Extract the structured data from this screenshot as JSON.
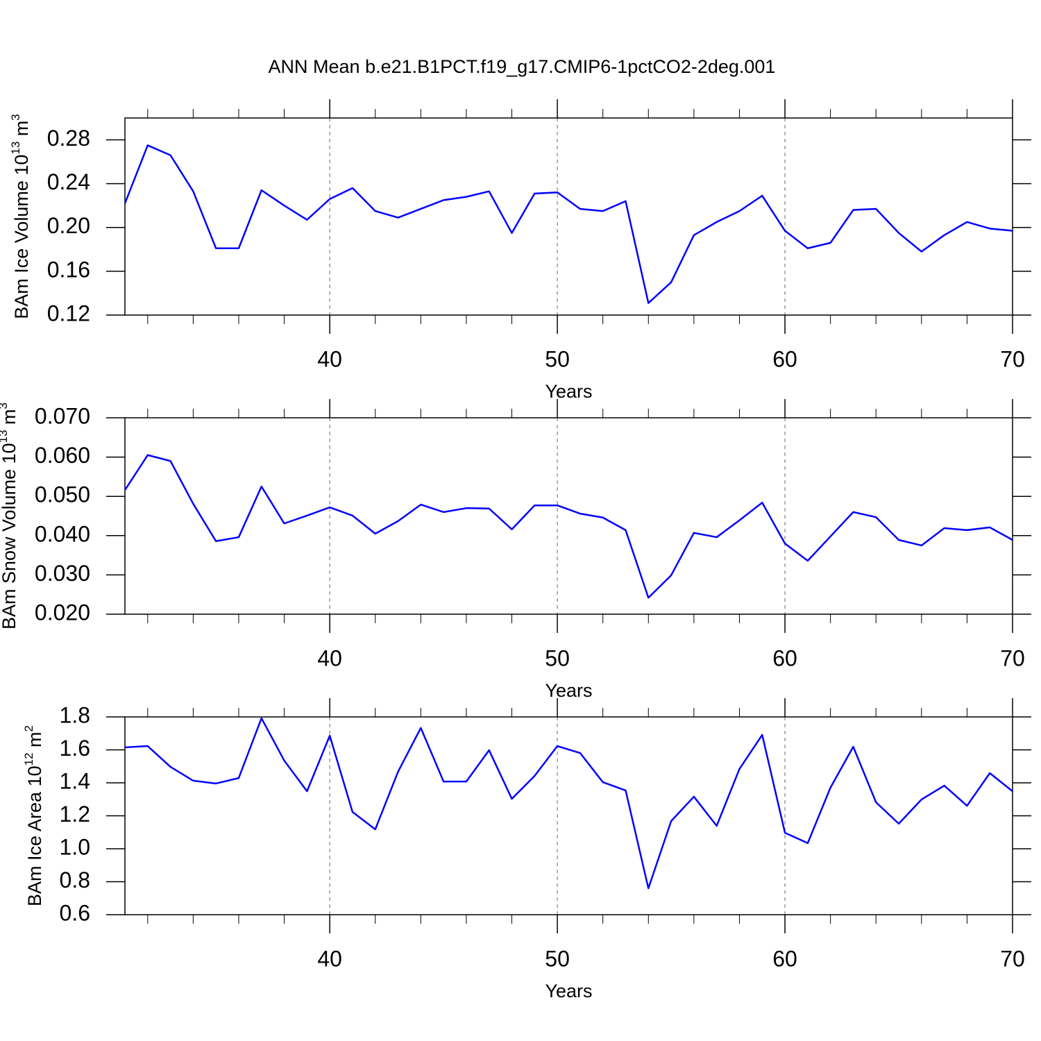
{
  "title": "ANN Mean b.e21.B1PCT.f19_g17.CMIP6-1pctCO2-2deg.001",
  "chart_data": [
    {
      "type": "line",
      "xlabel": "Years",
      "ylabel": [
        "BAm Ice Volume 10",
        "13",
        " m",
        "3"
      ],
      "color": "#0000ff",
      "x": [
        31,
        32,
        33,
        34,
        35,
        36,
        37,
        38,
        39,
        40,
        41,
        42,
        43,
        44,
        45,
        46,
        47,
        48,
        49,
        50,
        51,
        52,
        53,
        54,
        55,
        56,
        57,
        58,
        59,
        60,
        61,
        62,
        63,
        64,
        65,
        66,
        67,
        68,
        69,
        70
      ],
      "values": [
        0.222,
        0.275,
        0.266,
        0.233,
        0.181,
        0.181,
        0.234,
        0.22,
        0.207,
        0.226,
        0.236,
        0.215,
        0.209,
        0.217,
        0.225,
        0.228,
        0.233,
        0.195,
        0.231,
        0.232,
        0.217,
        0.215,
        0.224,
        0.131,
        0.15,
        0.193,
        0.205,
        0.215,
        0.229,
        0.197,
        0.181,
        0.186,
        0.216,
        0.217,
        0.195,
        0.178,
        0.193,
        0.205,
        0.199,
        0.197
      ],
      "xlim": [
        31,
        70
      ],
      "xticks": [
        40,
        50,
        60,
        70
      ],
      "xminorticks": [
        32,
        34,
        36,
        38,
        42,
        44,
        46,
        48,
        52,
        54,
        56,
        58,
        62,
        64,
        66,
        68
      ],
      "grid": true,
      "ylim": [
        0.12,
        0.3
      ],
      "yticks": [
        0.12,
        0.16,
        {
          "value": 0.2,
          "label": "0.20"
        },
        0.24,
        0.28
      ]
    },
    {
      "type": "line",
      "xlabel": "Years",
      "ylabel": [
        "BAm Snow Volume 10",
        "13",
        " m",
        "3"
      ],
      "color": "#0000ff",
      "x": [
        31,
        32,
        33,
        34,
        35,
        36,
        37,
        38,
        39,
        40,
        41,
        42,
        43,
        44,
        45,
        46,
        47,
        48,
        49,
        50,
        51,
        52,
        53,
        54,
        55,
        56,
        57,
        58,
        59,
        60,
        61,
        62,
        63,
        64,
        65,
        66,
        67,
        68,
        69,
        70
      ],
      "values": [
        0.0516,
        0.0605,
        0.059,
        0.0481,
        0.0386,
        0.0396,
        0.0525,
        0.0431,
        0.0451,
        0.0472,
        0.0451,
        0.0405,
        0.0437,
        0.0479,
        0.046,
        0.047,
        0.0469,
        0.0416,
        0.0477,
        0.0477,
        0.0456,
        0.0446,
        0.0414,
        0.0242,
        0.0299,
        0.0407,
        0.0396,
        0.0439,
        0.0484,
        0.038,
        0.0336,
        0.0398,
        0.046,
        0.0447,
        0.0389,
        0.0375,
        0.0419,
        0.0414,
        0.0421,
        0.0389
      ],
      "xlim": [
        31,
        70
      ],
      "xticks": [
        40,
        50,
        60,
        70
      ],
      "xminorticks": [
        32,
        34,
        36,
        38,
        42,
        44,
        46,
        48,
        52,
        54,
        56,
        58,
        62,
        64,
        66,
        68
      ],
      "grid": true,
      "ylim": [
        0.02,
        0.07
      ],
      "yticks": [
        {
          "value": 0.02,
          "label": "0.020"
        },
        {
          "value": 0.03,
          "label": "0.030"
        },
        {
          "value": 0.04,
          "label": "0.040"
        },
        {
          "value": 0.05,
          "label": "0.050"
        },
        {
          "value": 0.06,
          "label": "0.060"
        },
        {
          "value": 0.07,
          "label": "0.070"
        }
      ]
    },
    {
      "type": "line",
      "xlabel": "Years",
      "ylabel": [
        "BAm Ice Area 10",
        "12",
        " m",
        "2"
      ],
      "color": "#0000ff",
      "x": [
        31,
        32,
        33,
        34,
        35,
        36,
        37,
        38,
        39,
        40,
        41,
        42,
        43,
        44,
        45,
        46,
        47,
        48,
        49,
        50,
        51,
        52,
        53,
        54,
        55,
        56,
        57,
        58,
        59,
        60,
        61,
        62,
        63,
        64,
        65,
        66,
        67,
        68,
        69,
        70
      ],
      "values": [
        1.615,
        1.623,
        1.497,
        1.413,
        1.396,
        1.429,
        1.792,
        1.535,
        1.349,
        1.686,
        1.223,
        1.118,
        1.467,
        1.733,
        1.408,
        1.408,
        1.598,
        1.303,
        1.442,
        1.623,
        1.581,
        1.404,
        1.354,
        0.76,
        1.168,
        1.316,
        1.139,
        1.484,
        1.691,
        1.097,
        1.034,
        1.371,
        1.619,
        1.282,
        1.152,
        1.299,
        1.383,
        1.261,
        1.459,
        1.349
      ],
      "xlim": [
        31,
        70
      ],
      "xticks": [
        40,
        50,
        60,
        70
      ],
      "xminorticks": [
        32,
        34,
        36,
        38,
        42,
        44,
        46,
        48,
        52,
        54,
        56,
        58,
        62,
        64,
        66,
        68
      ],
      "grid": true,
      "ylim": [
        0.6,
        1.8
      ],
      "yticks": [
        0.6,
        0.8,
        {
          "value": 1,
          "label": "1.0"
        },
        1.2,
        1.4,
        1.6,
        1.8
      ]
    }
  ]
}
